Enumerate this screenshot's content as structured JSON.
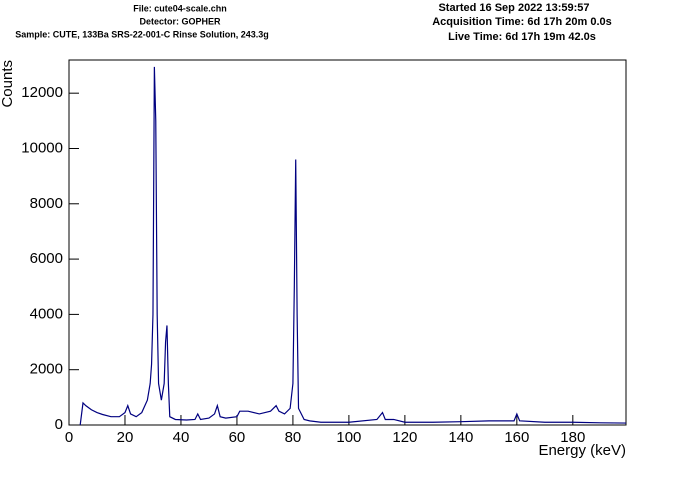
{
  "chart_data": {
    "type": "line",
    "header_left": [
      "File: cute04-scale.chn",
      "Detector: GOPHER",
      "Sample: CUTE, 133Ba SRS-22-001-C Rinse Solution, 243.3g"
    ],
    "header_right": [
      "Started 16 Sep 2022 13:59:57",
      "Acquisition Time: 6d 17h 20m 0.0s",
      "Live Time: 6d 17h 19m 42.0s"
    ],
    "xlabel": "Energy (keV)",
    "ylabel": "Counts",
    "xlim": [
      0,
      199
    ],
    "ylim": [
      0,
      13200
    ],
    "xticks": [
      0,
      20,
      40,
      60,
      80,
      100,
      120,
      140,
      160,
      180
    ],
    "yticks": [
      0,
      2000,
      4000,
      6000,
      8000,
      10000,
      12000
    ],
    "series": [
      {
        "color": "#000080",
        "x": [
          4,
          5,
          6,
          8,
          10,
          12,
          15,
          18,
          20,
          21,
          22,
          24,
          26,
          28,
          29,
          29.5,
          30,
          30.5,
          31,
          31.5,
          32,
          33,
          34,
          34.5,
          35,
          35.5,
          36,
          38,
          42,
          45,
          46,
          47,
          50,
          52,
          53,
          54,
          56,
          60,
          61,
          64,
          68,
          72,
          74,
          75,
          77,
          79,
          80,
          80.5,
          81,
          81.5,
          82,
          84,
          86,
          90,
          100,
          110,
          112,
          113,
          116,
          120,
          130,
          140,
          150,
          159,
          160,
          161,
          170,
          180,
          190,
          199
        ],
        "values": [
          0,
          800,
          700,
          550,
          450,
          380,
          300,
          300,
          450,
          700,
          400,
          300,
          450,
          900,
          1500,
          2200,
          4000,
          12950,
          11000,
          4000,
          1500,
          900,
          1500,
          3000,
          3600,
          1500,
          300,
          200,
          180,
          200,
          400,
          200,
          250,
          400,
          700,
          300,
          250,
          300,
          500,
          500,
          400,
          500,
          700,
          500,
          400,
          600,
          1500,
          5000,
          9600,
          4000,
          600,
          200,
          150,
          100,
          100,
          200,
          450,
          200,
          200,
          100,
          100,
          120,
          150,
          150,
          400,
          150,
          100,
          100,
          80,
          70
        ]
      }
    ]
  }
}
